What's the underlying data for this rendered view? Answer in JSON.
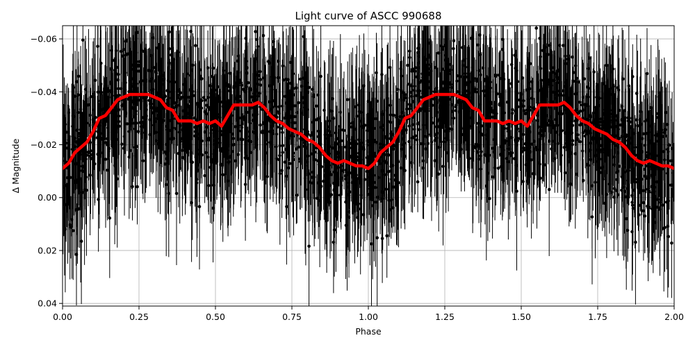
{
  "chart_data": {
    "type": "scatter",
    "title": "Light curve of ASCC 990688",
    "xlabel": "Phase",
    "ylabel": "Δ Magnitude",
    "xlim": [
      0.0,
      2.0
    ],
    "ylim": [
      0.041,
      -0.065
    ],
    "y_inverted": true,
    "grid": true,
    "x_ticks": [
      "0.00",
      "0.25",
      "0.50",
      "0.75",
      "1.00",
      "1.25",
      "1.50",
      "1.75",
      "2.00"
    ],
    "x_tick_values": [
      0.0,
      0.25,
      0.5,
      0.75,
      1.0,
      1.25,
      1.5,
      1.75,
      2.0
    ],
    "y_ticks": [
      "−0.06",
      "−0.04",
      "−0.02",
      "0.00",
      "0.02",
      "0.04"
    ],
    "y_tick_values": [
      -0.06,
      -0.04,
      -0.02,
      0.0,
      0.02,
      0.04
    ],
    "series": [
      {
        "style": "points-with-errorbars",
        "color": "#000000",
        "scatter_sigma": 0.012,
        "errorbar_typical": 0.02,
        "n_points": 2200,
        "follows": "binned-mean"
      },
      {
        "style": "line",
        "color": "#ff0000",
        "phase": [
          0.0,
          0.02,
          0.04,
          0.06,
          0.08,
          0.1,
          0.12,
          0.14,
          0.16,
          0.18,
          0.2,
          0.22,
          0.24,
          0.26,
          0.28,
          0.3,
          0.32,
          0.34,
          0.36,
          0.38,
          0.4,
          0.42,
          0.44,
          0.46,
          0.48,
          0.5,
          0.52,
          0.54,
          0.56,
          0.58,
          0.6,
          0.62,
          0.64,
          0.66,
          0.68,
          0.7,
          0.72,
          0.74,
          0.76,
          0.78,
          0.8,
          0.82,
          0.84,
          0.86,
          0.88,
          0.9,
          0.92,
          0.94,
          0.96,
          0.98,
          1.0
        ],
        "delta_mag": [
          -0.011,
          -0.013,
          -0.017,
          -0.019,
          -0.021,
          -0.025,
          -0.03,
          -0.031,
          -0.034,
          -0.037,
          -0.038,
          -0.039,
          -0.039,
          -0.039,
          -0.039,
          -0.038,
          -0.037,
          -0.034,
          -0.033,
          -0.029,
          -0.029,
          -0.029,
          -0.028,
          -0.029,
          -0.028,
          -0.029,
          -0.027,
          -0.031,
          -0.035,
          -0.035,
          -0.035,
          -0.035,
          -0.036,
          -0.034,
          -0.031,
          -0.029,
          -0.028,
          -0.026,
          -0.025,
          -0.024,
          -0.022,
          -0.021,
          -0.019,
          -0.016,
          -0.014,
          -0.013,
          -0.014,
          -0.013,
          -0.012,
          -0.012,
          -0.011
        ]
      }
    ]
  }
}
